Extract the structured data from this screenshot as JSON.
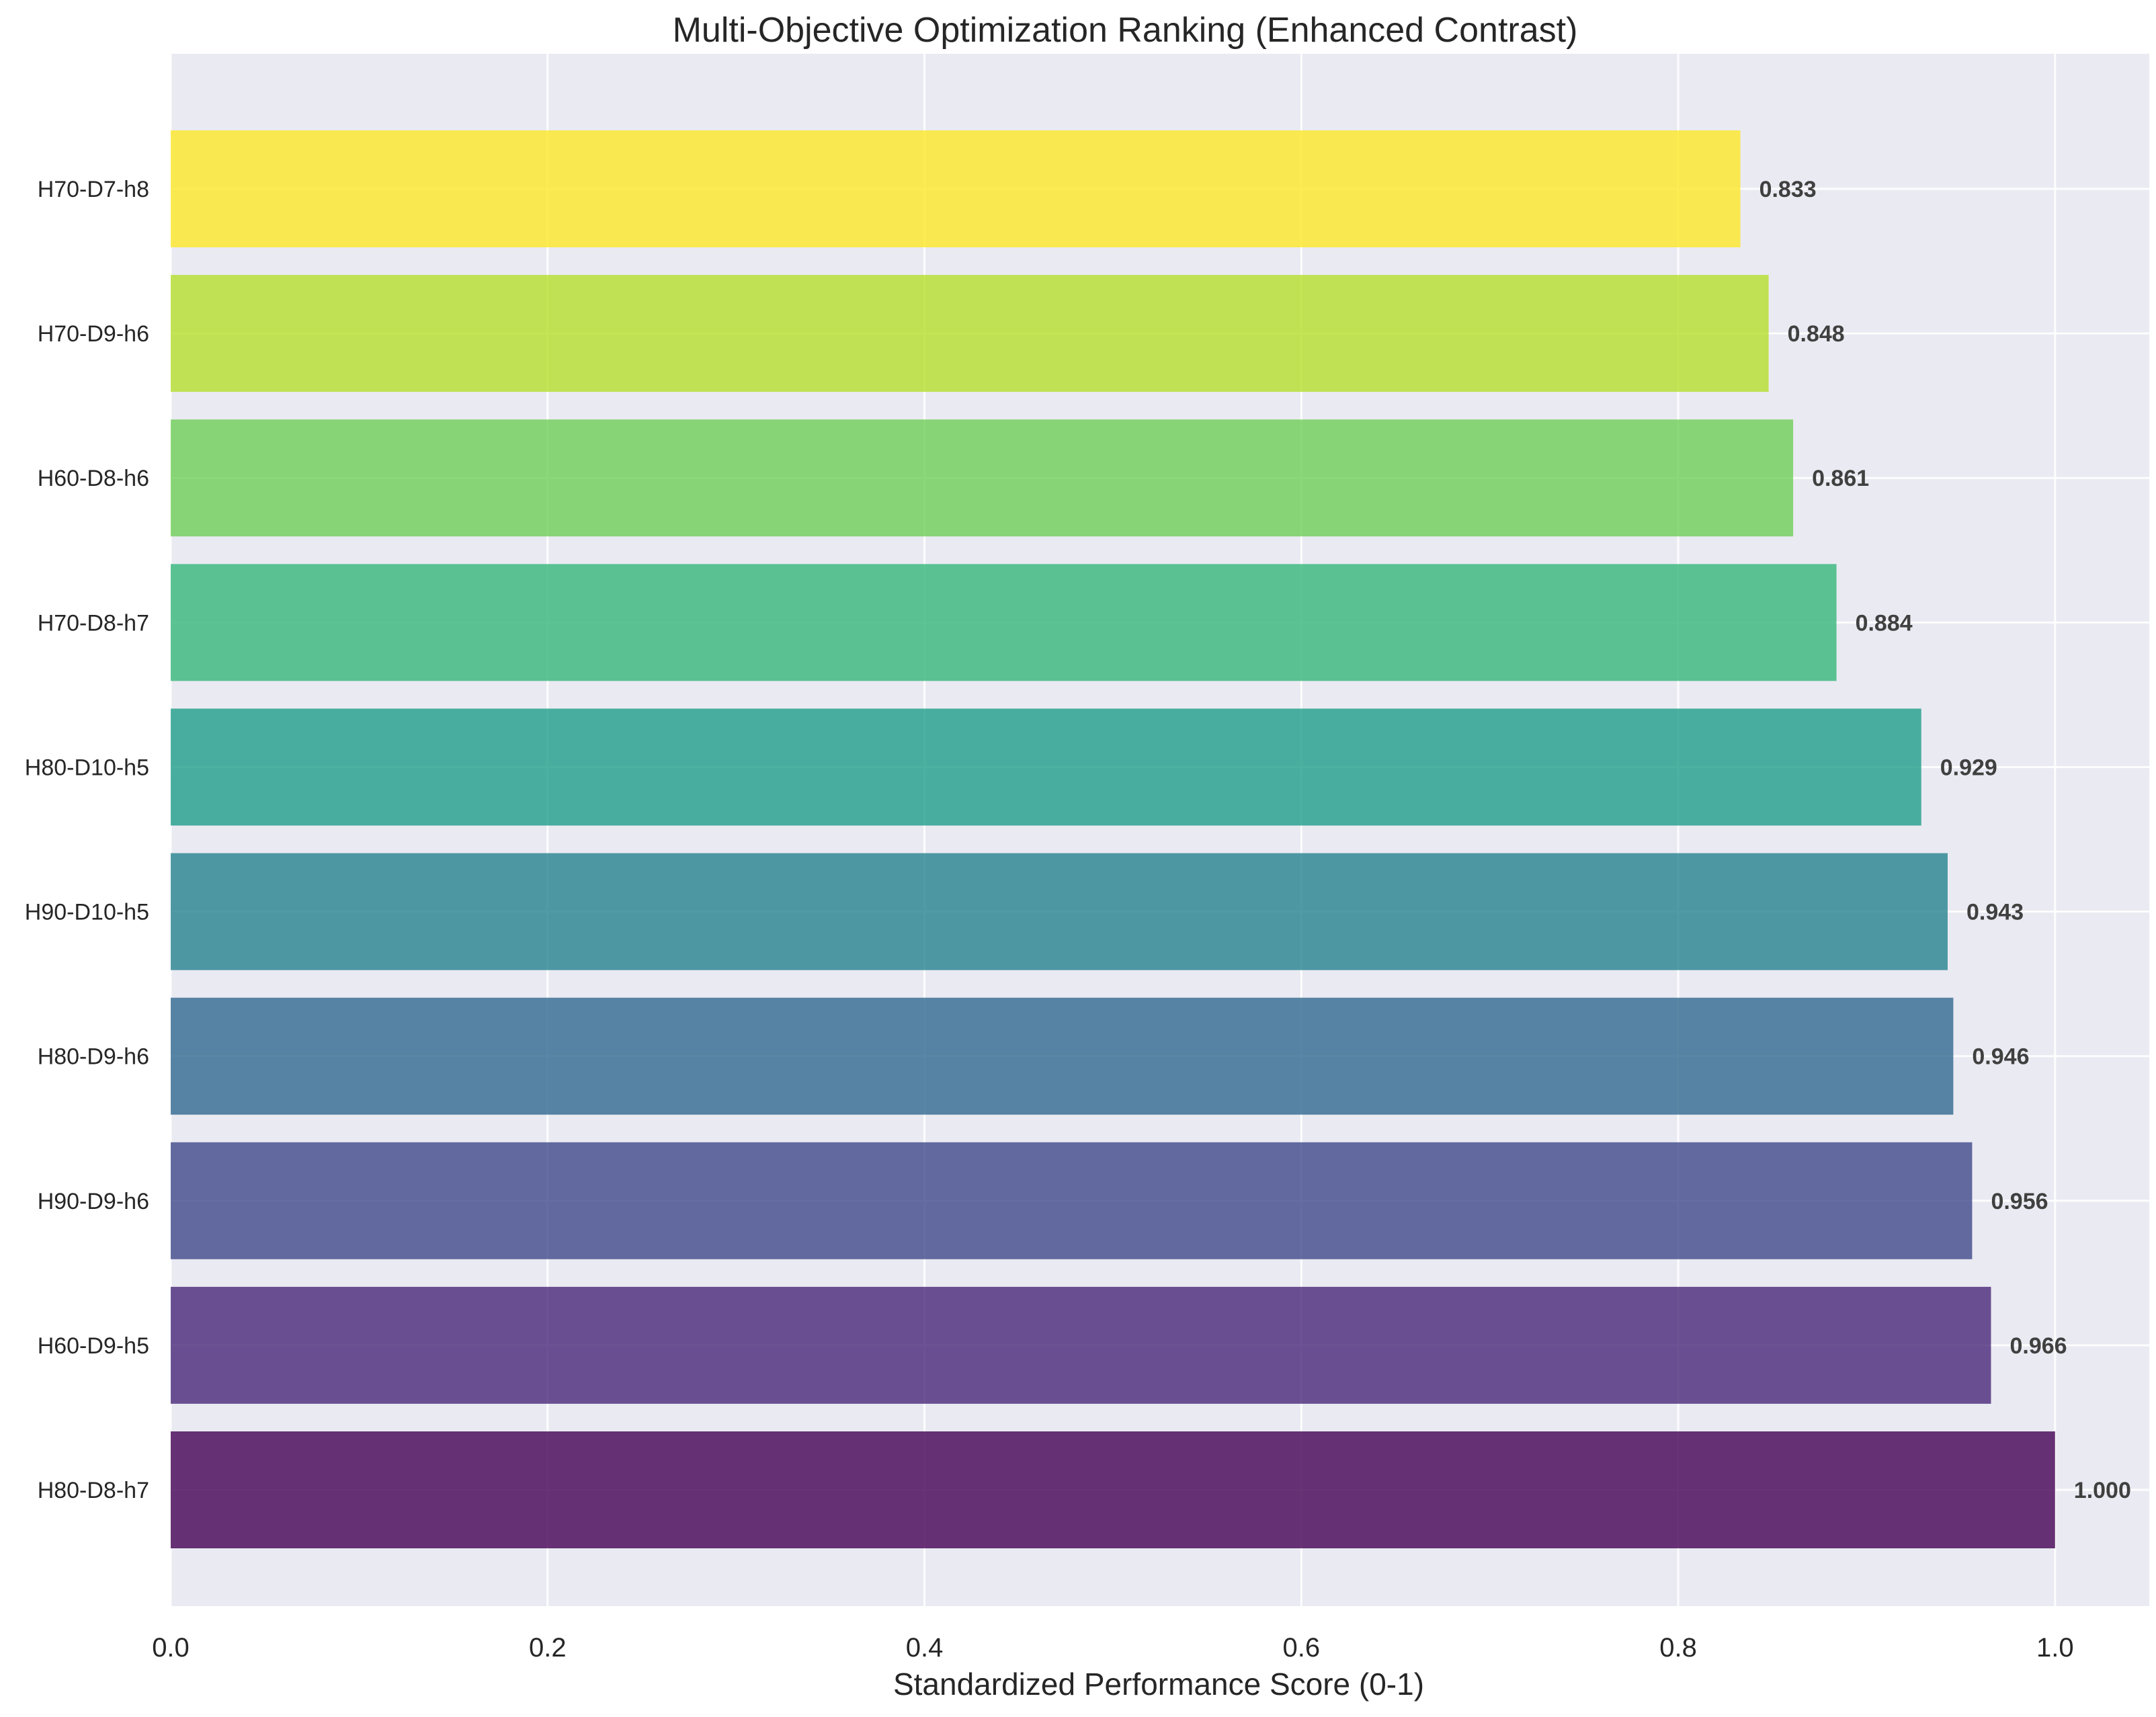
{
  "chart_data": {
    "type": "bar",
    "orientation": "horizontal",
    "title": "Multi-Objective Optimization Ranking (Enhanced Contrast)",
    "xlabel": "Standardized Performance Score (0-1)",
    "ylabel": "",
    "xlim": [
      0,
      1.05
    ],
    "xticks": [
      "0.0",
      "0.2",
      "0.4",
      "0.6",
      "0.8",
      "1.0"
    ],
    "grid": true,
    "categories": [
      "H80-D8-h7",
      "H60-D9-h5",
      "H90-D9-h6",
      "H80-D9-h6",
      "H90-D10-h5",
      "H80-D10-h5",
      "H70-D8-h7",
      "H60-D8-h6",
      "H70-D9-h6",
      "H70-D7-h8"
    ],
    "values": [
      1.0,
      0.966,
      0.956,
      0.946,
      0.943,
      0.929,
      0.884,
      0.861,
      0.848,
      0.833
    ],
    "value_labels": [
      "1.000",
      "0.966",
      "0.956",
      "0.946",
      "0.943",
      "0.929",
      "0.884",
      "0.861",
      "0.848",
      "0.833"
    ],
    "colors": [
      "#440154",
      "#482878",
      "#3e4989",
      "#31688e",
      "#26828e",
      "#1f9e89",
      "#35b779",
      "#6ece58",
      "#b5de2b",
      "#fde725"
    ],
    "background": "#eaeaf2"
  }
}
